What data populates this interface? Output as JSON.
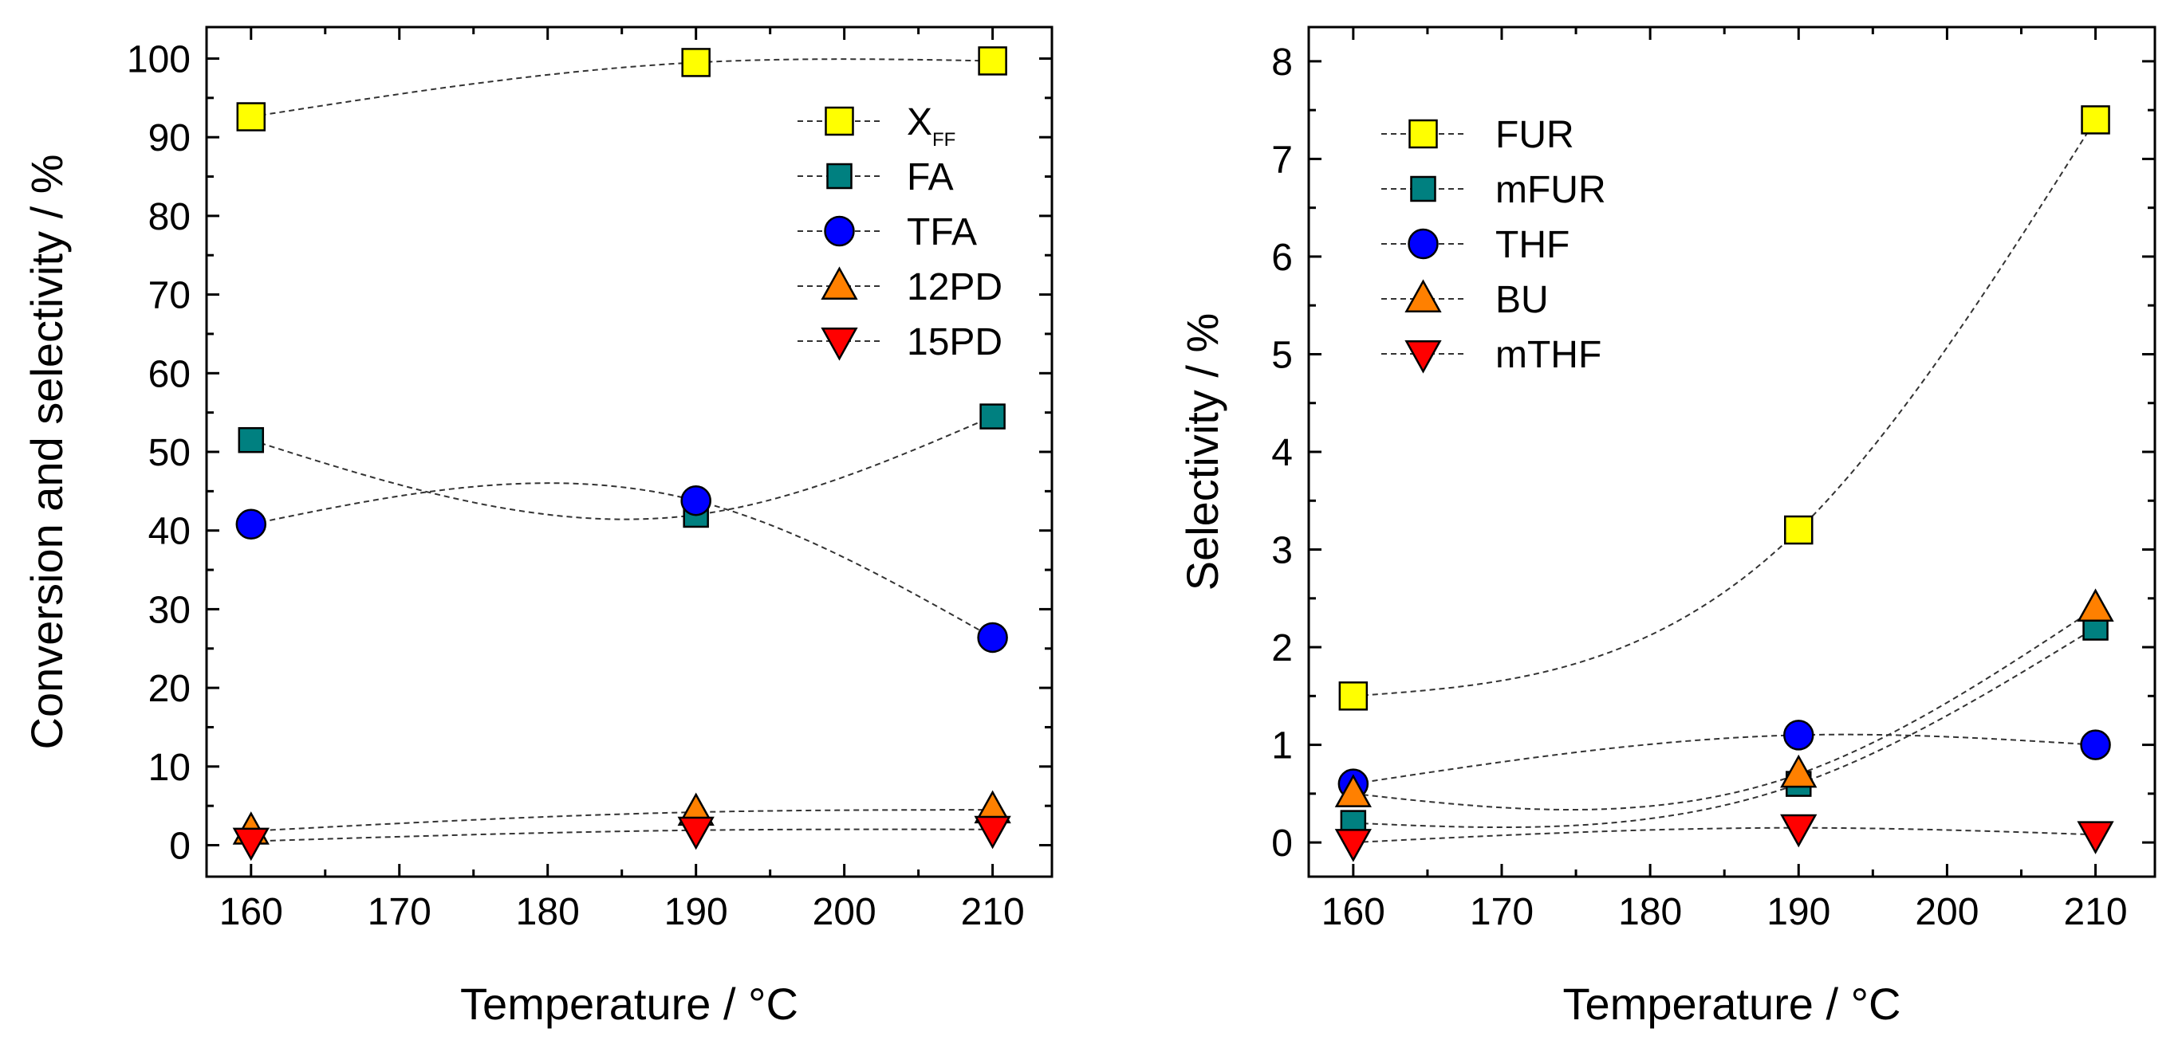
{
  "chart_data": [
    {
      "type": "scatter",
      "ylabel": "Conversion and selectivity / %",
      "xlabel": "Temperature / °C",
      "xlim": [
        157,
        214
      ],
      "ylim": [
        -4,
        104
      ],
      "xticks": [
        160,
        170,
        180,
        190,
        200,
        210
      ],
      "yticks": [
        0,
        10,
        20,
        30,
        40,
        50,
        60,
        70,
        80,
        90,
        100
      ],
      "legend_position": "top-right",
      "series": [
        {
          "name": "X",
          "subscript": "FF",
          "marker": "square",
          "color": "#ffff00",
          "x": [
            160,
            190,
            210
          ],
          "y": [
            92.6,
            99.5,
            99.7
          ]
        },
        {
          "name": "FA",
          "marker": "square-small",
          "color": "#008080",
          "x": [
            160,
            190,
            210
          ],
          "y": [
            51.5,
            42.0,
            54.5
          ]
        },
        {
          "name": "TFA",
          "marker": "circle",
          "color": "#0000ff",
          "x": [
            160,
            190,
            210
          ],
          "y": [
            40.8,
            43.8,
            26.4
          ]
        },
        {
          "name": "12PD",
          "marker": "triangle-up",
          "color": "#ff8000",
          "x": [
            160,
            190,
            210
          ],
          "y": [
            1.8,
            4.2,
            4.5
          ]
        },
        {
          "name": "15PD",
          "marker": "triangle-down",
          "color": "#ff0000",
          "x": [
            160,
            190,
            210
          ],
          "y": [
            0.5,
            1.9,
            2.0
          ]
        }
      ]
    },
    {
      "type": "scatter",
      "ylabel": "Selectivity / %",
      "xlabel": "Temperature / °C",
      "xlim": [
        157,
        214
      ],
      "ylim": [
        -0.35,
        8.35
      ],
      "xticks": [
        160,
        170,
        180,
        190,
        200,
        210
      ],
      "yticks": [
        0,
        1,
        2,
        3,
        4,
        5,
        6,
        7,
        8
      ],
      "legend_position": "top-left",
      "series": [
        {
          "name": "FUR",
          "marker": "square",
          "color": "#ffff00",
          "x": [
            160,
            190,
            210
          ],
          "y": [
            1.5,
            3.2,
            7.4
          ]
        },
        {
          "name": "mFUR",
          "marker": "square-small",
          "color": "#008080",
          "x": [
            160,
            190,
            210
          ],
          "y": [
            0.2,
            0.6,
            2.2
          ]
        },
        {
          "name": "THF",
          "marker": "circle",
          "color": "#0000ff",
          "x": [
            160,
            190,
            210
          ],
          "y": [
            0.6,
            1.1,
            1.0
          ]
        },
        {
          "name": "BU",
          "marker": "triangle-up",
          "color": "#ff8000",
          "x": [
            160,
            190,
            210
          ],
          "y": [
            0.5,
            0.7,
            2.4
          ]
        },
        {
          "name": "mTHF",
          "marker": "triangle-down",
          "color": "#ff0000",
          "x": [
            160,
            190,
            210
          ],
          "y": [
            0.0,
            0.15,
            0.08
          ]
        }
      ]
    }
  ]
}
